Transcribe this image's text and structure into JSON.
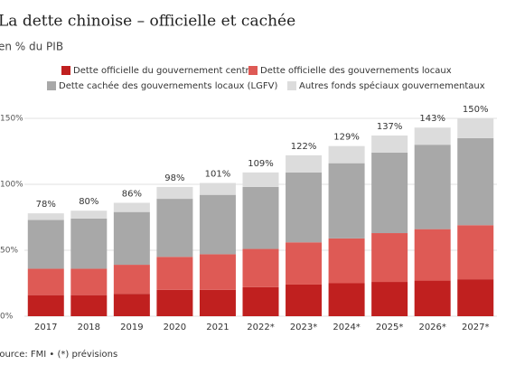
{
  "chart_data": {
    "type": "stacked-bar",
    "title": "La dette chinoise – officielle et cachée",
    "subtitle": "en % du PIB",
    "source": "Source: FMI • (*) prévisions",
    "categories": [
      "2017",
      "2018",
      "2019",
      "2020",
      "2021",
      "2022*",
      "2023*",
      "2024*",
      "2025*",
      "2026*",
      "2027*"
    ],
    "series": [
      {
        "name": "Dette officielle du gouvernement central",
        "color": "#c0201f",
        "values": [
          16,
          16,
          17,
          20,
          20,
          22,
          24,
          25,
          26,
          27,
          28
        ]
      },
      {
        "name": "Dette officielle des gouvernements locaux",
        "color": "#de5a55",
        "values": [
          20,
          20,
          22,
          25,
          27,
          29,
          32,
          34,
          37,
          39,
          41
        ]
      },
      {
        "name": "Dette cachée des gouvernements locaux (LGFV)",
        "color": "#a8a8a8",
        "values": [
          37,
          38,
          40,
          44,
          45,
          47,
          53,
          57,
          61,
          64,
          66
        ]
      },
      {
        "name": "Autres fonds spéciaux gouvernementaux",
        "color": "#dcdcdc",
        "values": [
          5,
          6,
          7,
          9,
          9,
          11,
          13,
          13,
          13,
          13,
          15
        ]
      }
    ],
    "totals": [
      78,
      80,
      86,
      98,
      101,
      109,
      122,
      129,
      137,
      143,
      150
    ],
    "total_labels": [
      "78%",
      "80%",
      "86%",
      "98%",
      "101%",
      "109%",
      "122%",
      "129%",
      "137%",
      "143%",
      "150%"
    ],
    "ylim": [
      0,
      150
    ],
    "yticks": [
      {
        "value": 0,
        "label": "0%"
      },
      {
        "value": 50,
        "label": "50%"
      },
      {
        "value": 100,
        "label": "100%"
      },
      {
        "value": 150,
        "label": "150%"
      }
    ],
    "grid": true
  }
}
